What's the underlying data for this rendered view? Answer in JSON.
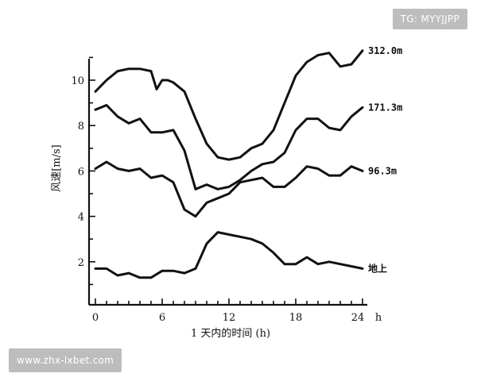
{
  "watermarks": {
    "top_right": "TG: MYYJJPP",
    "bottom_left": "www.zhx-lxbet.com"
  },
  "chart_data": {
    "type": "line",
    "title": "",
    "xlabel": "1 天内的时间 (h)",
    "ylabel": "风速[m/s]",
    "x_unit_label": "h",
    "xlim": [
      0,
      24
    ],
    "ylim": [
      0,
      11
    ],
    "x_ticks": [
      0,
      6,
      12,
      18,
      24
    ],
    "y_ticks": [
      2,
      4,
      6,
      8,
      10
    ],
    "grid": false,
    "legend": "none",
    "series": [
      {
        "name": "312.0m",
        "x": [
          0,
          1,
          2,
          3,
          4,
          5,
          5.5,
          6,
          6.5,
          7,
          8,
          9,
          10,
          11,
          12,
          13,
          14,
          15,
          16,
          17,
          18,
          19,
          20,
          21,
          22,
          23,
          24
        ],
        "y": [
          9.5,
          10.0,
          10.4,
          10.5,
          10.5,
          10.4,
          9.6,
          10.0,
          10.0,
          9.9,
          9.5,
          8.3,
          7.2,
          6.6,
          6.5,
          6.6,
          7.0,
          7.2,
          7.8,
          9.0,
          10.2,
          10.8,
          11.1,
          11.2,
          10.6,
          10.7,
          11.3
        ]
      },
      {
        "name": "171.3m",
        "x": [
          0,
          1,
          2,
          3,
          4,
          5,
          6,
          7,
          8,
          9,
          10,
          11,
          12,
          13,
          14,
          15,
          16,
          17,
          18,
          19,
          20,
          21,
          22,
          23,
          24
        ],
        "y": [
          8.7,
          8.9,
          8.4,
          8.1,
          8.3,
          7.7,
          7.7,
          7.8,
          6.9,
          5.2,
          5.4,
          5.2,
          5.3,
          5.6,
          6.0,
          6.3,
          6.4,
          6.8,
          7.8,
          8.3,
          8.3,
          7.9,
          7.8,
          8.4,
          8.8
        ]
      },
      {
        "name": "96.3m",
        "x": [
          0,
          1,
          2,
          3,
          4,
          5,
          6,
          7,
          8,
          9,
          10,
          11,
          12,
          13,
          14,
          15,
          16,
          17,
          18,
          19,
          20,
          21,
          22,
          23,
          24
        ],
        "y": [
          6.1,
          6.4,
          6.1,
          6.0,
          6.1,
          5.7,
          5.8,
          5.5,
          4.3,
          4.0,
          4.6,
          4.8,
          5.0,
          5.5,
          5.6,
          5.7,
          5.3,
          5.3,
          5.7,
          6.2,
          6.1,
          5.8,
          5.8,
          6.2,
          6.0
        ]
      },
      {
        "name": "地上",
        "x": [
          0,
          1,
          2,
          3,
          4,
          5,
          6,
          7,
          8,
          9,
          10,
          11,
          12,
          13,
          14,
          15,
          16,
          17,
          18,
          19,
          20,
          21,
          22,
          23,
          24
        ],
        "y": [
          1.7,
          1.7,
          1.4,
          1.5,
          1.3,
          1.3,
          1.6,
          1.6,
          1.5,
          1.7,
          2.8,
          3.3,
          3.2,
          3.1,
          3.0,
          2.8,
          2.4,
          1.9,
          1.9,
          2.2,
          1.9,
          2.0,
          1.9,
          1.8,
          1.7
        ]
      }
    ]
  }
}
